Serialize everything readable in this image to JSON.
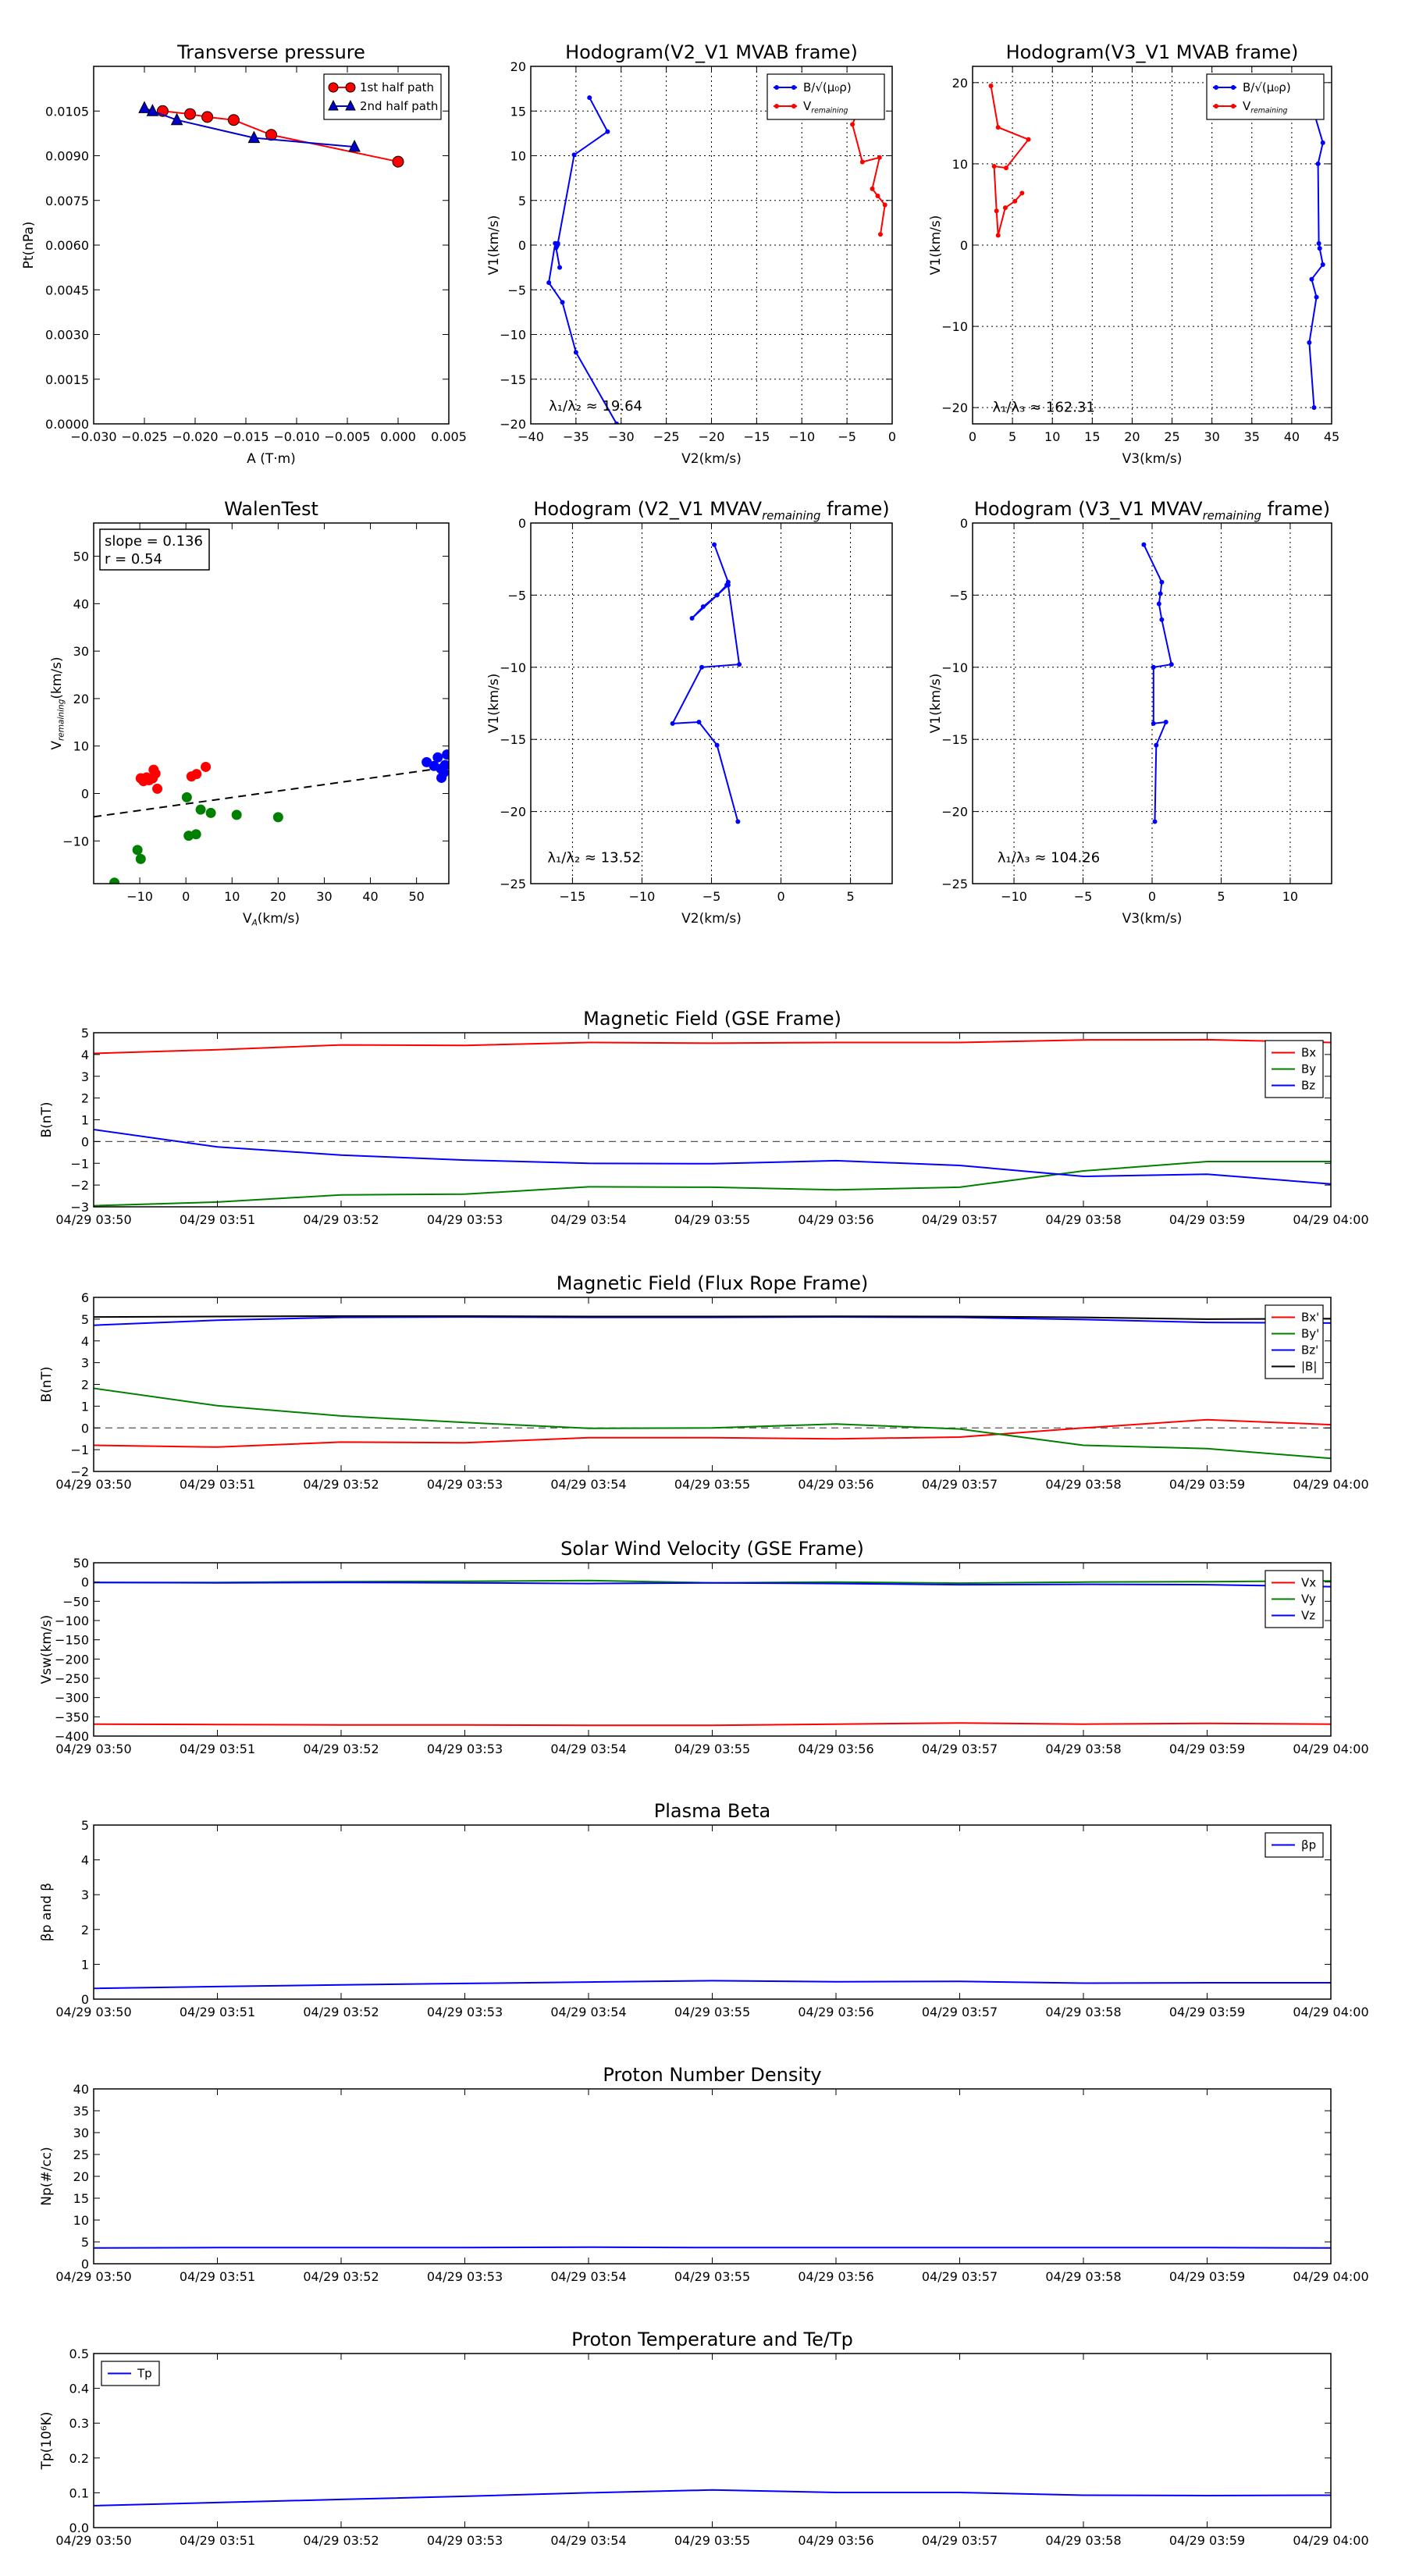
{
  "chart_data": [
    {
      "id": "pt",
      "type": "line",
      "title": "Transverse pressure",
      "xlabel": "A (T·m)",
      "ylabel": "Pt(nPa)",
      "xlim": [
        -0.03,
        0.005
      ],
      "ylim": [
        0,
        0.012
      ],
      "xticks": [
        -0.03,
        -0.025,
        -0.02,
        -0.015,
        -0.01,
        -0.005,
        0,
        0.005
      ],
      "xtick_labels": [
        "−0.030",
        "−0.025",
        "−0.020",
        "−0.015",
        "−0.010",
        "−0.005",
        "0.000",
        "0.005"
      ],
      "yticks": [
        0,
        0.0015,
        0.003,
        0.0045,
        0.006,
        0.0075,
        0.009,
        0.0105
      ],
      "ytick_labels": [
        "0.0000",
        "0.0015",
        "0.0030",
        "0.0045",
        "0.0060",
        "0.0075",
        "0.0090",
        "0.0105"
      ],
      "grid": false,
      "legend": "upper right",
      "series": [
        {
          "name": "1st half path",
          "color": "#ff0000",
          "marker": "circle",
          "x": [
            -0.0232,
            -0.0205,
            -0.0188,
            -0.0162,
            -0.0125,
            0.0
          ],
          "y": [
            0.0105,
            0.0104,
            0.0103,
            0.0102,
            0.0097,
            0.0088
          ]
        },
        {
          "name": "2nd half path",
          "color": "#0000cc",
          "marker": "triangle",
          "x": [
            -0.025,
            -0.0242,
            -0.0218,
            -0.0142,
            -0.0043
          ],
          "y": [
            0.0106,
            0.0105,
            0.0102,
            0.0096,
            0.0093
          ]
        }
      ]
    },
    {
      "id": "hodo_v2_mvab",
      "type": "line",
      "title": "Hodogram(V2_V1 MVAB frame)",
      "xlabel": "V2(km/s)",
      "ylabel": "V1(km/s)",
      "xlim": [
        -40,
        0
      ],
      "ylim": [
        -20,
        20
      ],
      "xticks": [
        -40,
        -35,
        -30,
        -25,
        -20,
        -15,
        -10,
        -5,
        0
      ],
      "xtick_labels": [
        "−40",
        "−35",
        "−30",
        "−25",
        "−20",
        "−15",
        "−10",
        "−5",
        "0"
      ],
      "yticks": [
        -20,
        -15,
        -10,
        -5,
        0,
        5,
        10,
        15,
        20
      ],
      "ytick_labels": [
        "−20",
        "−15",
        "−10",
        "−5",
        "0",
        "5",
        "10",
        "15",
        "20"
      ],
      "grid": true,
      "legend": "upper right",
      "annotation": {
        "text": "λ₁/λ₂ ≈ 19.64",
        "x": -38,
        "y": -18.5
      },
      "series": [
        {
          "name": "B/√(μ₀ρ)",
          "color": "#0000ff",
          "x": [
            -33.5,
            -31.5,
            -35.2,
            -37.0,
            -37.1,
            -37.2,
            -36.8,
            -37.3,
            -38.0,
            -36.5,
            -35.0,
            -30.5
          ],
          "y": [
            16.5,
            12.7,
            10.1,
            0.2,
            -0.1,
            -0.3,
            -2.5,
            0.2,
            -4.2,
            -6.4,
            -12.0,
            -20.0
          ]
        },
        {
          "name": "V_remaining",
          "color": "#ff0000",
          "x": [
            -4.6,
            -3.8,
            -4.4,
            -3.3,
            -1.4,
            -2.2,
            -1.6,
            -0.8,
            -1.3
          ],
          "y": [
            16.0,
            15.0,
            13.5,
            9.3,
            9.8,
            6.3,
            5.5,
            4.5,
            1.2
          ]
        }
      ]
    },
    {
      "id": "hodo_v3_mvab",
      "type": "line",
      "title": "Hodogram(V3_V1 MVAB frame)",
      "xlabel": "V3(km/s)",
      "ylabel": "V1(km/s)",
      "xlim": [
        0,
        45
      ],
      "ylim": [
        -22,
        22
      ],
      "xticks": [
        0,
        5,
        10,
        15,
        20,
        25,
        30,
        35,
        40,
        45
      ],
      "xtick_labels": [
        "0",
        "5",
        "10",
        "15",
        "20",
        "25",
        "30",
        "35",
        "40",
        "45"
      ],
      "yticks": [
        -20,
        -10,
        0,
        10,
        20
      ],
      "ytick_labels": [
        "−20",
        "−10",
        "0",
        "10",
        "20"
      ],
      "grid": true,
      "legend": "upper right",
      "annotation": {
        "text": "λ₁/λ₃ ≈ 162.31",
        "x": 2.5,
        "y": -20.5
      },
      "series": [
        {
          "name": "B/√(μ₀ρ)",
          "color": "#0000ff",
          "x": [
            41.8,
            43.9,
            43.3,
            43.4,
            43.5,
            43.9,
            42.5,
            43.1,
            42.2,
            42.8
          ],
          "y": [
            19.6,
            12.6,
            10.0,
            0.2,
            -0.4,
            -2.4,
            -4.2,
            -6.4,
            -12.0,
            -20.0
          ]
        },
        {
          "name": "V_remaining",
          "color": "#ff0000",
          "x": [
            2.3,
            3.2,
            7.0,
            4.2,
            2.7,
            3.0,
            3.2,
            4.1,
            5.3,
            6.2
          ],
          "y": [
            19.6,
            14.5,
            13.0,
            9.5,
            9.7,
            4.2,
            1.2,
            4.6,
            5.4,
            6.4
          ]
        }
      ]
    },
    {
      "id": "walen",
      "type": "scatter",
      "title": "WalenTest",
      "xlabel": "V_A(km/s)",
      "ylabel": "V_remaining(km/s)",
      "xlim": [
        -20,
        57
      ],
      "ylim": [
        -19,
        57
      ],
      "xticks": [
        -10,
        0,
        10,
        20,
        30,
        40,
        50
      ],
      "xtick_labels": [
        "−10",
        "0",
        "10",
        "20",
        "30",
        "40",
        "50"
      ],
      "yticks": [
        -10,
        0,
        10,
        20,
        30,
        40,
        50
      ],
      "ytick_labels": [
        "−10",
        "0",
        "10",
        "20",
        "30",
        "40",
        "50"
      ],
      "grid": false,
      "stats": {
        "slope_text": "slope = 0.136",
        "r_text": "r = 0.54"
      },
      "fit_line": {
        "slope": 0.136,
        "intercept": -2.2,
        "style": "dashed"
      },
      "series": [
        {
          "name": "",
          "color": "#ff0000",
          "x": [
            -9.8,
            -9.2,
            -8.5,
            -8.0,
            -7.2,
            -7.0,
            -6.6,
            -6.2,
            1.2,
            2.3,
            4.3
          ],
          "y": [
            3.2,
            2.6,
            3.4,
            2.8,
            3.2,
            5.0,
            4.2,
            1.0,
            3.6,
            4.1,
            5.6
          ]
        },
        {
          "name": "",
          "color": "#008000",
          "x": [
            -15.5,
            -10.5,
            -9.8,
            0.2,
            0.6,
            2.2,
            3.2,
            5.4,
            11.0,
            20.0
          ],
          "y": [
            -18.8,
            -11.9,
            -13.8,
            -0.8,
            -8.9,
            -8.6,
            -3.4,
            -4.1,
            -4.5,
            -5.0
          ]
        },
        {
          "name": "",
          "color": "#0000ff",
          "x": [
            52.2,
            53.8,
            54.6,
            55.3,
            55.9,
            56.2,
            56.6,
            55.4
          ],
          "y": [
            6.6,
            5.8,
            7.6,
            5.2,
            4.4,
            6.0,
            8.2,
            3.3
          ]
        }
      ]
    },
    {
      "id": "hodo_v2_mvav",
      "type": "line",
      "title": "Hodogram (V2_V1 MVAV_remaining frame)",
      "xlabel": "V2(km/s)",
      "ylabel": "V1(km/s)",
      "xlim": [
        -18,
        8
      ],
      "ylim": [
        -25,
        0
      ],
      "xticks": [
        -15,
        -10,
        -5,
        0,
        5
      ],
      "xtick_labels": [
        "−15",
        "−10",
        "−5",
        "0",
        "5"
      ],
      "yticks": [
        -25,
        -20,
        -15,
        -10,
        -5,
        0
      ],
      "ytick_labels": [
        "−25",
        "−20",
        "−15",
        "−10",
        "−5",
        "0"
      ],
      "grid": true,
      "annotation": {
        "text": "λ₁/λ₂ ≈ 13.52",
        "x": -16.8,
        "y": -23.5
      },
      "series": [
        {
          "name": "",
          "color": "#0000ff",
          "x": [
            -4.8,
            -3.8,
            -3.9,
            -4.6,
            -5.6,
            -6.4,
            -3.8,
            -3.0,
            -5.7,
            -7.8,
            -5.9,
            -4.6,
            -3.1
          ],
          "y": [
            -1.5,
            -4.1,
            -4.3,
            -5.0,
            -5.8,
            -6.6,
            -4.3,
            -9.8,
            -10.0,
            -13.9,
            -13.8,
            -15.4,
            -20.7
          ]
        }
      ]
    },
    {
      "id": "hodo_v3_mvav",
      "type": "line",
      "title": "Hodogram (V3_V1 MVAV_remaining frame)",
      "xlabel": "V3(km/s)",
      "ylabel": "V1(km/s)",
      "xlim": [
        -13,
        13
      ],
      "ylim": [
        -25,
        0
      ],
      "xticks": [
        -10,
        -5,
        0,
        5,
        10
      ],
      "xtick_labels": [
        "−10",
        "−5",
        "0",
        "5",
        "10"
      ],
      "yticks": [
        -25,
        -20,
        -15,
        -10,
        -5,
        0
      ],
      "ytick_labels": [
        "−25",
        "−20",
        "−15",
        "−10",
        "−5",
        "0"
      ],
      "grid": true,
      "annotation": {
        "text": "λ₁/λ₃ ≈ 104.26",
        "x": -11.2,
        "y": -23.5
      },
      "series": [
        {
          "name": "",
          "color": "#0000ff",
          "x": [
            -0.6,
            0.7,
            0.6,
            0.5,
            0.7,
            1.4,
            0.1,
            0.1,
            1.0,
            0.3,
            0.2
          ],
          "y": [
            -1.5,
            -4.1,
            -4.9,
            -5.6,
            -6.7,
            -9.8,
            -10.0,
            -13.9,
            -13.8,
            -15.4,
            -20.7
          ]
        }
      ]
    },
    {
      "id": "bgse",
      "type": "line",
      "title": "Magnetic Field (GSE Frame)",
      "xlabel": "",
      "ylabel": "B(nT)",
      "categories": [
        "04/29 03:50",
        "04/29 03:51",
        "04/29 03:52",
        "04/29 03:53",
        "04/29 03:54",
        "04/29 03:55",
        "04/29 03:56",
        "04/29 03:57",
        "04/29 03:58",
        "04/29 03:59",
        "04/29 04:00"
      ],
      "ylim": [
        -3,
        5
      ],
      "yticks": [
        -3,
        -2,
        -1,
        0,
        1,
        2,
        3,
        4,
        5
      ],
      "ytick_labels": [
        "−3",
        "−2",
        "−1",
        "0",
        "1",
        "2",
        "3",
        "4",
        "5"
      ],
      "zero_line": true,
      "legend": "upper right",
      "series": [
        {
          "name": "Bx",
          "color": "#ff0000",
          "values": [
            4.05,
            4.22,
            4.44,
            4.42,
            4.55,
            4.52,
            4.55,
            4.55,
            4.67,
            4.68,
            4.55
          ]
        },
        {
          "name": "By",
          "color": "#008000",
          "values": [
            -2.95,
            -2.78,
            -2.45,
            -2.42,
            -2.08,
            -2.1,
            -2.22,
            -2.1,
            -1.35,
            -0.92,
            -0.92
          ]
        },
        {
          "name": "Bz",
          "color": "#0000ff",
          "values": [
            0.55,
            -0.25,
            -0.62,
            -0.85,
            -1.0,
            -1.02,
            -0.88,
            -1.1,
            -1.6,
            -1.5,
            -1.95
          ]
        }
      ]
    },
    {
      "id": "bfr",
      "type": "line",
      "title": "Magnetic Field (Flux Rope Frame)",
      "xlabel": "",
      "ylabel": "B(nT)",
      "categories": [
        "04/29 03:50",
        "04/29 03:51",
        "04/29 03:52",
        "04/29 03:53",
        "04/29 03:54",
        "04/29 03:55",
        "04/29 03:56",
        "04/29 03:57",
        "04/29 03:58",
        "04/29 03:59",
        "04/29 04:00"
      ],
      "ylim": [
        -2,
        6
      ],
      "yticks": [
        -2,
        -1,
        0,
        1,
        2,
        3,
        4,
        5,
        6
      ],
      "ytick_labels": [
        "−2",
        "−1",
        "0",
        "1",
        "2",
        "3",
        "4",
        "5",
        "6"
      ],
      "zero_line": true,
      "legend": "upper right",
      "series": [
        {
          "name": "Bx'",
          "color": "#ff0000",
          "values": [
            -0.8,
            -0.88,
            -0.65,
            -0.68,
            -0.45,
            -0.45,
            -0.5,
            -0.42,
            0.0,
            0.38,
            0.15
          ]
        },
        {
          "name": "By'",
          "color": "#008000",
          "values": [
            1.82,
            1.02,
            0.55,
            0.25,
            -0.02,
            0.0,
            0.18,
            -0.05,
            -0.8,
            -0.95,
            -1.4
          ]
        },
        {
          "name": "Bz'",
          "color": "#0000ff",
          "values": [
            4.72,
            4.95,
            5.08,
            5.1,
            5.08,
            5.08,
            5.1,
            5.08,
            4.98,
            4.85,
            4.82
          ]
        },
        {
          "name": "|B|",
          "color": "#000000",
          "values": [
            5.1,
            5.12,
            5.14,
            5.14,
            5.12,
            5.12,
            5.13,
            5.12,
            5.08,
            5.0,
            5.02
          ]
        }
      ]
    },
    {
      "id": "vsw",
      "type": "line",
      "title": "Solar Wind Velocity (GSE Frame)",
      "xlabel": "",
      "ylabel": "Vsw(km/s)",
      "categories": [
        "04/29 03:50",
        "04/29 03:51",
        "04/29 03:52",
        "04/29 03:53",
        "04/29 03:54",
        "04/29 03:55",
        "04/29 03:56",
        "04/29 03:57",
        "04/29 03:58",
        "04/29 03:59",
        "04/29 04:00"
      ],
      "ylim": [
        -400,
        50
      ],
      "yticks": [
        -400,
        -350,
        -300,
        -250,
        -200,
        -150,
        -100,
        -50,
        0,
        50
      ],
      "ytick_labels": [
        "−400",
        "−350",
        "−300",
        "−250",
        "−200",
        "−150",
        "−100",
        "−50",
        "0",
        "50"
      ],
      "legend": "upper right",
      "series": [
        {
          "name": "Vx",
          "color": "#ff0000",
          "values": [
            -369,
            -370,
            -371,
            -371,
            -372,
            -372,
            -369,
            -366,
            -369,
            -367,
            -369
          ]
        },
        {
          "name": "Vy",
          "color": "#008000",
          "values": [
            -1,
            -1,
            1,
            2,
            4,
            -2,
            0,
            -3,
            0,
            1,
            3
          ]
        },
        {
          "name": "Vz",
          "color": "#0000ff",
          "values": [
            -1,
            -2,
            -1,
            -2,
            -4,
            -2,
            -4,
            -7,
            -6,
            -7,
            -12
          ]
        }
      ]
    },
    {
      "id": "beta",
      "type": "line",
      "title": "Plasma Beta",
      "xlabel": "",
      "ylabel": "βp and β",
      "categories": [
        "04/29 03:50",
        "04/29 03:51",
        "04/29 03:52",
        "04/29 03:53",
        "04/29 03:54",
        "04/29 03:55",
        "04/29 03:56",
        "04/29 03:57",
        "04/29 03:58",
        "04/29 03:59",
        "04/29 04:00"
      ],
      "ylim": [
        0,
        5
      ],
      "yticks": [
        0,
        1,
        2,
        3,
        4,
        5
      ],
      "ytick_labels": [
        "0",
        "1",
        "2",
        "3",
        "4",
        "5"
      ],
      "legend": "upper right",
      "series": [
        {
          "name": "βp",
          "color": "#0000ff",
          "values": [
            0.31,
            0.36,
            0.41,
            0.45,
            0.49,
            0.53,
            0.5,
            0.51,
            0.46,
            0.47,
            0.47
          ]
        }
      ]
    },
    {
      "id": "np",
      "type": "line",
      "title": "Proton Number Density",
      "xlabel": "",
      "ylabel": "Np(#/cc)",
      "categories": [
        "04/29 03:50",
        "04/29 03:51",
        "04/29 03:52",
        "04/29 03:53",
        "04/29 03:54",
        "04/29 03:55",
        "04/29 03:56",
        "04/29 03:57",
        "04/29 03:58",
        "04/29 03:59",
        "04/29 04:00"
      ],
      "ylim": [
        0,
        40
      ],
      "yticks": [
        0,
        5,
        10,
        15,
        20,
        25,
        30,
        35,
        40
      ],
      "ytick_labels": [
        "0",
        "5",
        "10",
        "15",
        "20",
        "25",
        "30",
        "35",
        "40"
      ],
      "series": [
        {
          "name": "",
          "color": "#0000ff",
          "values": [
            3.6,
            3.7,
            3.7,
            3.7,
            3.8,
            3.7,
            3.7,
            3.7,
            3.7,
            3.7,
            3.6
          ]
        }
      ]
    },
    {
      "id": "tp",
      "type": "line",
      "title": "Proton Temperature and Te/Tp",
      "xlabel": "",
      "ylabel": "Tp(10⁶K)",
      "categories": [
        "04/29 03:50",
        "04/29 03:51",
        "04/29 03:52",
        "04/29 03:53",
        "04/29 03:54",
        "04/29 03:55",
        "04/29 03:56",
        "04/29 03:57",
        "04/29 03:58",
        "04/29 03:59",
        "04/29 04:00"
      ],
      "ylim": [
        0,
        0.5
      ],
      "yticks": [
        0,
        0.1,
        0.2,
        0.3,
        0.4,
        0.5
      ],
      "ytick_labels": [
        "0.0",
        "0.1",
        "0.2",
        "0.3",
        "0.4",
        "0.5"
      ],
      "legend": "upper left",
      "series": [
        {
          "name": "Tp",
          "color": "#0000ff",
          "values": [
            0.063,
            0.072,
            0.081,
            0.09,
            0.1,
            0.108,
            0.101,
            0.101,
            0.093,
            0.092,
            0.093
          ]
        }
      ]
    }
  ]
}
